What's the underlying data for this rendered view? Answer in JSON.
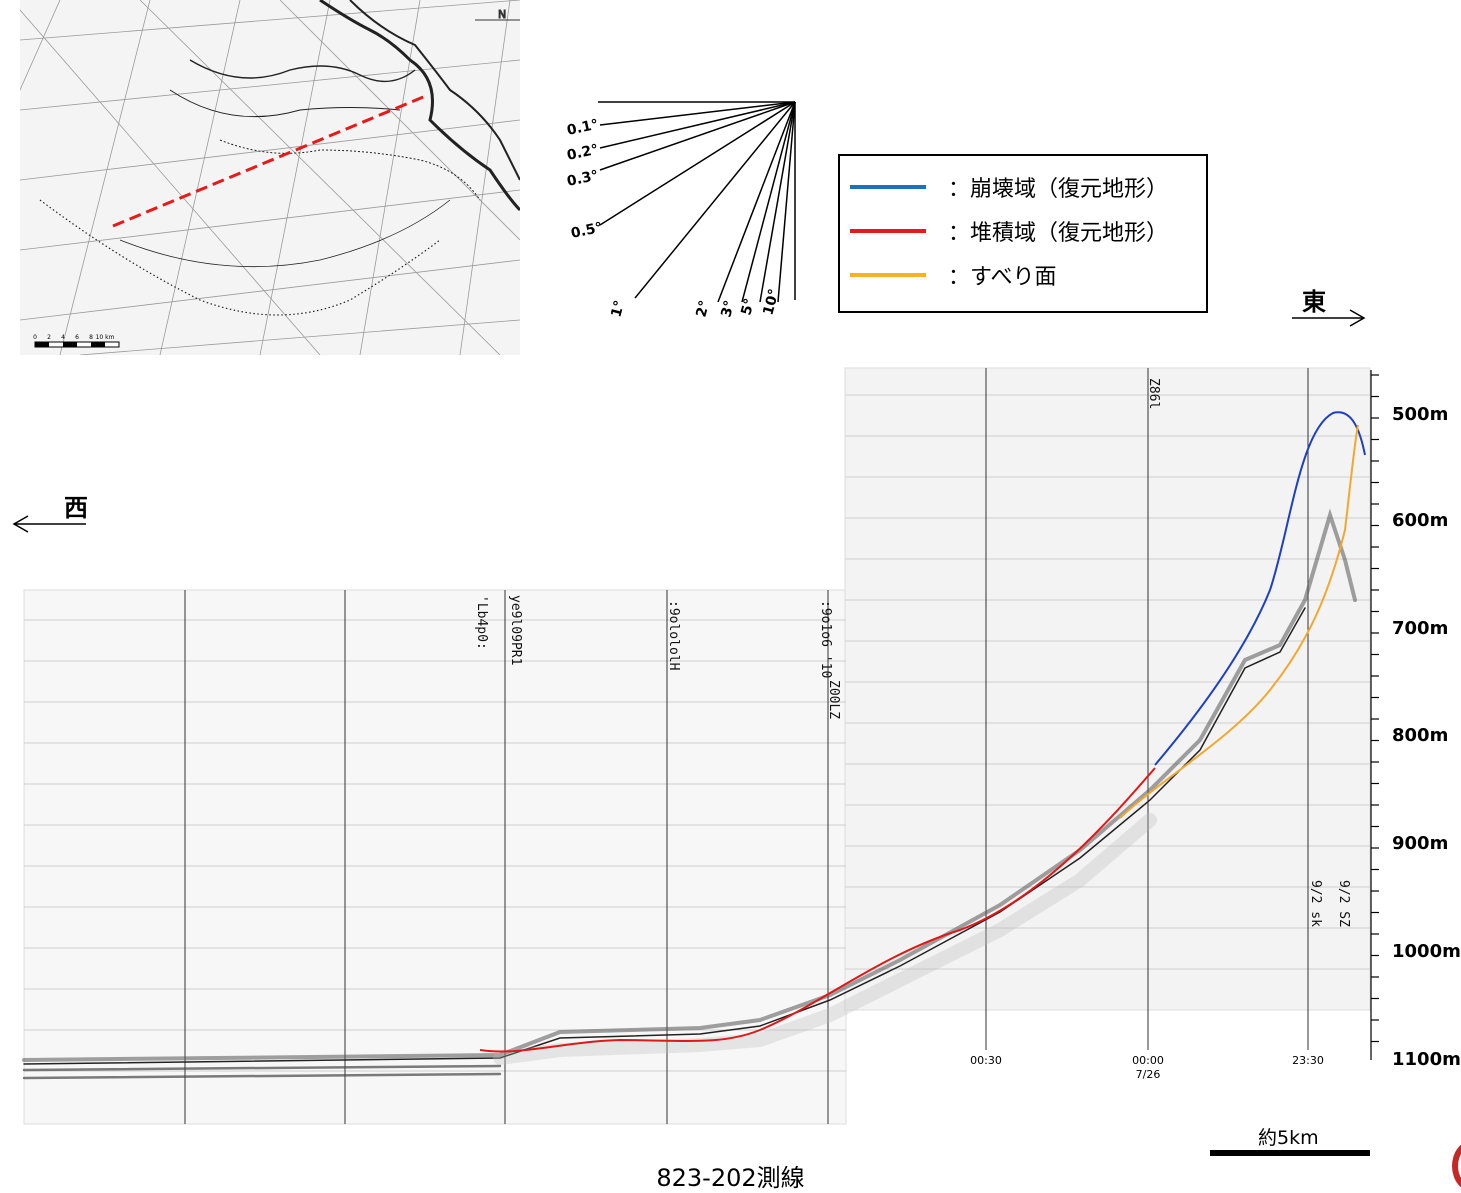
{
  "legend": {
    "items": [
      {
        "label": "：崩壊域（復元地形）",
        "color": "#1f6fbd"
      },
      {
        "label": "：堆積域（復元地形）",
        "color": "#e81919"
      },
      {
        "label": "：すべり面",
        "color": "#f5b324"
      }
    ]
  },
  "slope_gauge": {
    "angles": [
      "0.1°",
      "0.2°",
      "0.3°",
      "0.5°",
      "1°",
      "2°",
      "3°",
      "5°",
      "10°"
    ]
  },
  "directions": {
    "east": "東",
    "west": "西"
  },
  "depth_axis": [
    "500m",
    "600m",
    "700m",
    "800m",
    "900m",
    "1000m",
    "1100m"
  ],
  "time_labels": [
    "00:30",
    "00:00",
    "7/26",
    "23:30"
  ],
  "minimap": {
    "scale_ticks": [
      "0",
      "2",
      "4",
      "6",
      "8",
      "10 km"
    ],
    "north": "N"
  },
  "scale": {
    "label": "約5km"
  },
  "caption": "823-202測線",
  "colors": {
    "collapse": "#1f3fbf",
    "deposit": "#e01818",
    "slip": "#f0a830"
  }
}
